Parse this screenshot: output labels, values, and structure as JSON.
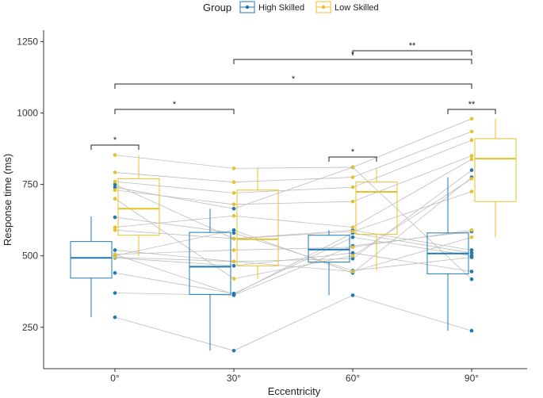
{
  "chart_data": {
    "type": "box",
    "title": "",
    "xlabel": "Eccentricity",
    "ylabel": "Response time (ms)",
    "ylim": [
      105,
      1290
    ],
    "yticks": [
      250,
      500,
      750,
      1000,
      1250
    ],
    "categories": [
      "0°",
      "30°",
      "60°",
      "90°"
    ],
    "legend": {
      "title": "Group",
      "position": "top",
      "items": [
        {
          "name": "High Skilled",
          "color": "#1f78b4"
        },
        {
          "name": "Low Skilled",
          "color": "#e6c12b"
        }
      ]
    },
    "series": [
      {
        "name": "High Skilled",
        "color": "#1f78b4",
        "boxes": [
          {
            "category": "0°",
            "whisker_low": 285,
            "q1": 422,
            "median": 493,
            "q3": 550,
            "whisker_high": 638
          },
          {
            "category": "30°",
            "whisker_low": 168,
            "q1": 365,
            "median": 462,
            "q3": 582,
            "whisker_high": 665
          },
          {
            "category": "60°",
            "whisker_low": 362,
            "q1": 478,
            "median": 522,
            "q3": 572,
            "whisker_high": 590
          },
          {
            "category": "90°",
            "whisker_low": 238,
            "q1": 437,
            "median": 508,
            "q3": 580,
            "whisker_high": 775
          }
        ],
        "points": [
          [
            740,
            665,
            810,
            418
          ],
          [
            500,
            590,
            440,
            775
          ],
          [
            520,
            480,
            490,
            800
          ],
          [
            505,
            365,
            580,
            510
          ],
          [
            285,
            168,
            362,
            238
          ],
          [
            440,
            368,
            565,
            500
          ],
          [
            370,
            362,
            535,
            585
          ],
          [
            635,
            580,
            448,
            495
          ],
          [
            493,
            465,
            510,
            445
          ],
          [
            750,
            560,
            590,
            520
          ]
        ]
      },
      {
        "name": "Low Skilled",
        "color": "#e6c12b",
        "boxes": [
          {
            "category": "0°",
            "whisker_low": 500,
            "q1": 572,
            "median": 665,
            "q3": 770,
            "whisker_high": 852
          },
          {
            "category": "30°",
            "whisker_low": 420,
            "q1": 465,
            "median": 558,
            "q3": 730,
            "whisker_high": 806
          },
          {
            "category": "60°",
            "whisker_low": 448,
            "q1": 575,
            "median": 724,
            "q3": 758,
            "whisker_high": 806
          },
          {
            "category": "90°",
            "whisker_low": 565,
            "q1": 690,
            "median": 840,
            "q3": 910,
            "whisker_high": 980
          }
        ],
        "points": [
          [
            853,
            806,
            810,
            980
          ],
          [
            792,
            758,
            775,
            935
          ],
          [
            760,
            720,
            740,
            905
          ],
          [
            730,
            680,
            690,
            850
          ],
          [
            600,
            640,
            600,
            838
          ],
          [
            590,
            560,
            585,
            725
          ],
          [
            505,
            520,
            530,
            590
          ],
          [
            495,
            480,
            445,
            565
          ],
          [
            700,
            420,
            500,
            770
          ]
        ]
      }
    ],
    "significance": [
      {
        "from": "0°",
        "to": "90°",
        "label": "*"
      },
      {
        "from": "0°",
        "to": "30°",
        "label": "*"
      },
      {
        "from": "30°",
        "to": "90°",
        "label": "*"
      },
      {
        "from": "60°",
        "to": "90°",
        "label": "**"
      },
      {
        "from": "0° High Skilled",
        "to": "0° Low Skilled",
        "label": "*"
      },
      {
        "from": "60° High Skilled",
        "to": "60° Low Skilled",
        "label": "*"
      },
      {
        "from": "90° High Skilled",
        "to": "90° Low Skilled",
        "label": "**"
      }
    ]
  }
}
